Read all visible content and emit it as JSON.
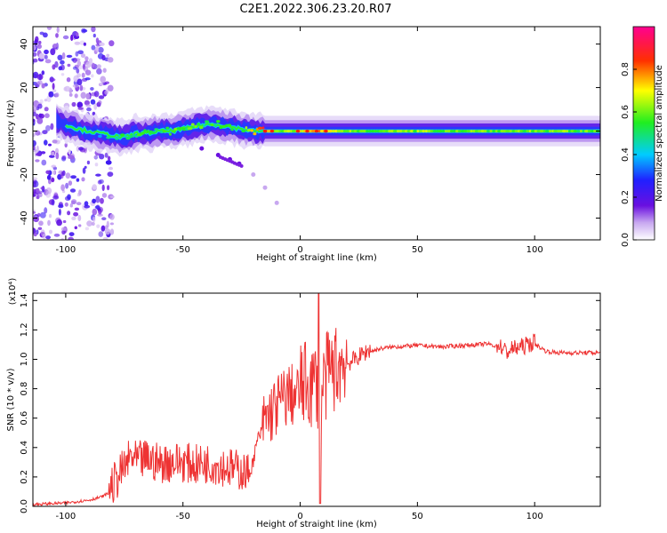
{
  "title": "C2E1.2022.306.23.20.R07",
  "chart_data": [
    {
      "type": "heatmap",
      "xlabel": "Height of straight line (km)",
      "ylabel": "Frequency (Hz)",
      "xlim": [
        -114,
        128
      ],
      "ylim": [
        -50,
        48
      ],
      "xticks": [
        -100,
        -50,
        0,
        50,
        100
      ],
      "yticks": [
        -40,
        -20,
        0,
        20,
        40
      ],
      "colorbar": {
        "label": "Normalized spectral amplitude",
        "range": [
          0,
          1
        ],
        "ticks": [
          "0.0",
          "0.2",
          "0.4",
          "0.6",
          "0.8"
        ],
        "tick_values": [
          0,
          0.2,
          0.4,
          0.6,
          0.8
        ]
      },
      "ridge": {
        "x": [
          -104,
          -100,
          -95,
          -90,
          -85,
          -80,
          -75,
          -70,
          -65,
          -60,
          -55,
          -50,
          -45,
          -40,
          -35,
          -30,
          -25,
          -20,
          -15,
          -10,
          -5,
          0,
          10,
          20,
          40,
          60,
          80,
          100,
          128
        ],
        "freq": [
          5,
          3,
          1,
          0,
          -1,
          -2,
          -3,
          -1,
          -1,
          0,
          0,
          1,
          2,
          3,
          3,
          2,
          1,
          0,
          0,
          0,
          0,
          0,
          0,
          0,
          0,
          0,
          0,
          0,
          0
        ],
        "amplitude": [
          0.15,
          0.25,
          0.3,
          0.35,
          0.4,
          0.45,
          0.5,
          0.5,
          0.55,
          0.5,
          0.55,
          0.55,
          0.55,
          0.5,
          0.55,
          0.5,
          0.45,
          0.8,
          0.9,
          0.6,
          0.6,
          0.7,
          0.75,
          0.6,
          0.6,
          0.6,
          0.6,
          0.6,
          0.55
        ]
      },
      "scatter_region": {
        "x_range": [
          -114,
          -80
        ],
        "freq_range": [
          -50,
          48
        ],
        "amplitude_range": [
          0.05,
          0.25
        ]
      },
      "side_branch": {
        "x": [
          -42,
          -35,
          -30,
          -26,
          -20,
          -15,
          -10
        ],
        "freq": [
          -8,
          -11,
          -13,
          -15,
          -20,
          -26,
          -33
        ]
      }
    },
    {
      "type": "line",
      "xlabel": "Height of straight line (km)",
      "ylabel": "SNR (10 * v/v)",
      "scale_label": "(x10⁴)",
      "xlim": [
        -114,
        128
      ],
      "ylim": [
        0,
        1.45
      ],
      "xticks": [
        -100,
        -50,
        0,
        50,
        100
      ],
      "yticks": [
        "0.0",
        "0.2",
        "0.4",
        "0.6",
        "0.8",
        "1.0",
        "1.2",
        "1.4"
      ],
      "ytick_values": [
        0,
        0.2,
        0.4,
        0.6,
        0.8,
        1.0,
        1.2,
        1.4
      ],
      "series": [
        {
          "name": "SNR",
          "color": "#ee3333",
          "x": [
            -114,
            -100,
            -90,
            -85,
            -80,
            -78,
            -75,
            -72,
            -70,
            -65,
            -60,
            -55,
            -50,
            -45,
            -40,
            -35,
            -30,
            -25,
            -22,
            -20,
            -18,
            -15,
            -12,
            -10,
            -8,
            -5,
            -2,
            0,
            3,
            5,
            7,
            8,
            10,
            12,
            15,
            18,
            20,
            25,
            30,
            35,
            40,
            50,
            60,
            70,
            80,
            85,
            88,
            90,
            95,
            100,
            105,
            110,
            120,
            128
          ],
          "y": [
            0.01,
            0.02,
            0.04,
            0.06,
            0.1,
            0.15,
            0.22,
            0.3,
            0.26,
            0.28,
            0.25,
            0.26,
            0.26,
            0.24,
            0.25,
            0.24,
            0.22,
            0.2,
            0.18,
            0.3,
            0.45,
            0.52,
            0.58,
            0.62,
            0.65,
            0.7,
            0.68,
            0.72,
            0.75,
            0.72,
            0.78,
            0.5,
            0.75,
            0.82,
            0.85,
            0.88,
            0.95,
            1.0,
            1.05,
            1.07,
            1.08,
            1.09,
            1.08,
            1.09,
            1.1,
            1.08,
            1.03,
            1.05,
            1.07,
            1.1,
            1.05,
            1.04,
            1.04,
            1.04
          ]
        }
      ]
    }
  ]
}
